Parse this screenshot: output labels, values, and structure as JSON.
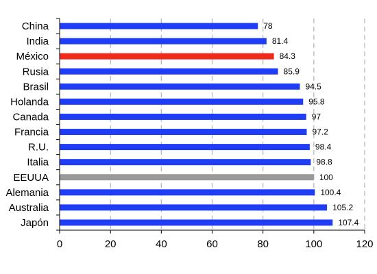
{
  "chart_data": {
    "type": "bar",
    "orientation": "horizontal",
    "categories": [
      "China",
      "India",
      "México",
      "Rusia",
      "Brasil",
      "Holanda",
      "Canada",
      "Francia",
      "R.U.",
      "Italia",
      "EEUUA",
      "Alemania",
      "Australia",
      "Japón"
    ],
    "values": [
      78,
      81.4,
      84.3,
      85.9,
      94.5,
      95.8,
      97,
      97.2,
      98.4,
      98.8,
      100,
      100.4,
      105.2,
      107.4
    ],
    "value_labels": [
      "78",
      "81.4",
      "84.3",
      "85.9",
      "94.5",
      "95.8",
      "97",
      "97.2",
      "98.4",
      "98.8",
      "100",
      "100.4",
      "105.2",
      "107.4"
    ],
    "bar_colors": [
      "#1f3df5",
      "#1f3df5",
      "#ee2a1a",
      "#1f3df5",
      "#1f3df5",
      "#1f3df5",
      "#1f3df5",
      "#1f3df5",
      "#1f3df5",
      "#1f3df5",
      "#999999",
      "#1f3df5",
      "#1f3df5",
      "#1f3df5"
    ],
    "xlim": [
      0,
      120
    ],
    "xticks": [
      0,
      20,
      40,
      60,
      80,
      100,
      120
    ],
    "xtick_labels": [
      "0",
      "20",
      "40",
      "60",
      "80",
      "100",
      "120"
    ],
    "grid": "vertical-dashed",
    "title": "",
    "xlabel": "",
    "ylabel": ""
  }
}
